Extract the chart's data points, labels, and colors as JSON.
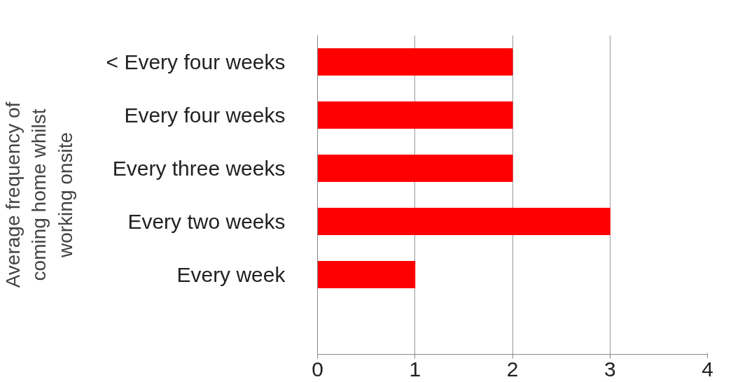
{
  "chart_data": {
    "type": "bar",
    "orientation": "horizontal",
    "ylabel": "Average frequency of coming home whilst working onsite",
    "categories": [
      "< Every four weeks",
      "Every four weeks",
      "Every three weeks",
      "Every two weeks",
      "Every week",
      null
    ],
    "values": [
      2,
      2,
      2,
      3,
      1,
      null
    ],
    "color": "#ff0000",
    "xlim": [
      0,
      4
    ],
    "xticks": [
      0,
      1,
      2,
      3,
      4
    ],
    "grid": "x"
  }
}
